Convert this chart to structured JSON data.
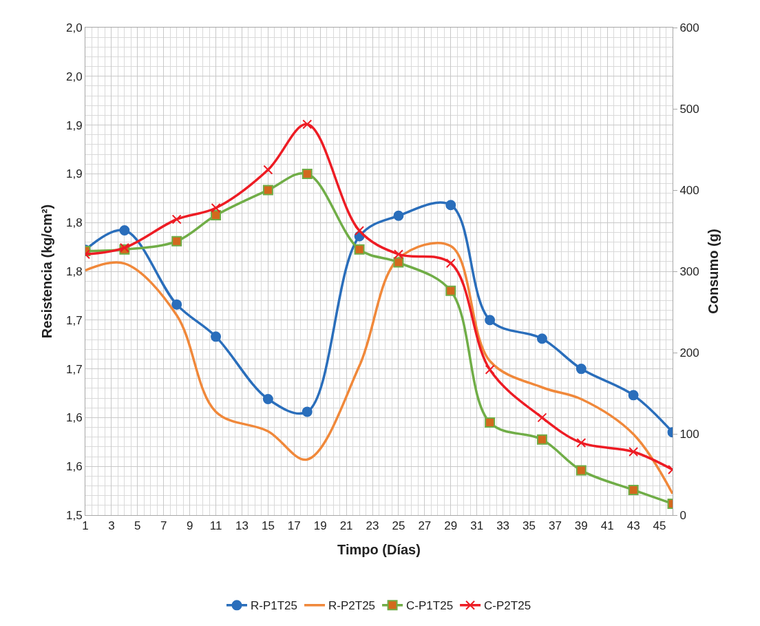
{
  "chart_data": {
    "type": "line",
    "xlabel": "Timpo (Días)",
    "ylabel": "Resistencia (kg/cm²)",
    "y2label": "Consumo (g)",
    "x": [
      1,
      4,
      8,
      11,
      15,
      18,
      22,
      25,
      29,
      32,
      36,
      39,
      43,
      46
    ],
    "xlim": [
      1,
      46
    ],
    "xticks": [
      1,
      3,
      5,
      7,
      9,
      11,
      13,
      15,
      17,
      19,
      21,
      23,
      25,
      27,
      29,
      31,
      33,
      35,
      37,
      39,
      41,
      43,
      45
    ],
    "ylim": [
      1.5,
      2.0
    ],
    "yticks": [
      {
        "value": 1.5,
        "label": "1,5"
      },
      {
        "value": 1.55,
        "label": "1,6"
      },
      {
        "value": 1.6,
        "label": "1,6"
      },
      {
        "value": 1.65,
        "label": "1,7"
      },
      {
        "value": 1.7,
        "label": "1,7"
      },
      {
        "value": 1.75,
        "label": "1,8"
      },
      {
        "value": 1.8,
        "label": "1,8"
      },
      {
        "value": 1.85,
        "label": "1,9"
      },
      {
        "value": 1.9,
        "label": "1,9"
      },
      {
        "value": 1.95,
        "label": "2,0"
      },
      {
        "value": 2.0,
        "label": "2,0"
      }
    ],
    "y2lim": [
      0,
      600
    ],
    "y2ticks": [
      0,
      100,
      200,
      300,
      400,
      500,
      600
    ],
    "grid": true,
    "legend": "bottom",
    "line_style": "solid",
    "series": [
      {
        "name": "R-P1T25",
        "color": "#2a6ebb",
        "marker": "circle",
        "values": [
          1.772,
          1.792,
          1.716,
          1.683,
          1.619,
          1.606,
          1.786,
          1.807,
          1.818,
          1.7,
          1.681,
          1.65,
          1.623,
          1.585
        ]
      },
      {
        "name": "R-P2T25",
        "color": "#f0883a",
        "marker": "none",
        "values": [
          1.751,
          1.758,
          1.705,
          1.606,
          1.586,
          1.557,
          1.653,
          1.763,
          1.776,
          1.658,
          1.631,
          1.619,
          1.583,
          1.522
        ]
      },
      {
        "name": "C-P1T25",
        "color": "#70ad47",
        "marker": "square",
        "colors": [
          "#d2691e",
          "#d2691e",
          "#d2691e",
          "#d2691e",
          "#d2691e",
          "#d2691e",
          "#d2691e",
          "#d2691e",
          "#d2691e",
          "#d2691e",
          "#d2691e",
          "#d2691e",
          "#d2691e",
          "#d2691e"
        ],
        "axis": "y2",
        "values": [
          325,
          327,
          337,
          369,
          400,
          420,
          327,
          311,
          276,
          114,
          93,
          55,
          31,
          14
        ]
      },
      {
        "name": "C-P2T25",
        "color": "#ed1c24",
        "marker": "cross",
        "axis": "y2",
        "values": [
          321,
          329,
          364,
          378,
          425,
          481,
          350,
          321,
          310,
          179,
          120,
          89,
          78,
          56
        ]
      }
    ]
  }
}
